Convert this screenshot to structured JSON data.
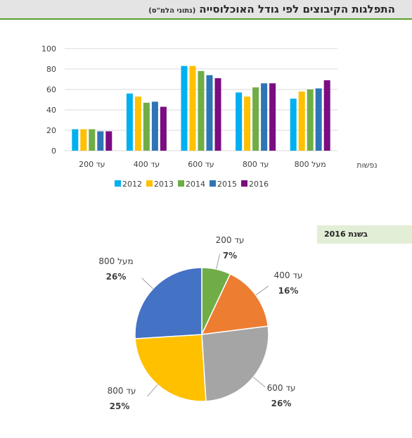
{
  "header": {
    "title": "התפלגות הקיבוצים לפי גודל האוכלוסייה",
    "subtitle": "(נתוני הלמ\"ס)"
  },
  "pie_caption": "בשנת 2016",
  "chart_data": [
    {
      "type": "bar",
      "categories": [
        "עד 200",
        "עד 400",
        "עד 600",
        "עד 800",
        "מעל 800"
      ],
      "xlabel": "נפשות",
      "ylabel": "",
      "ylim": [
        0,
        100
      ],
      "yticks": [
        0,
        20,
        40,
        60,
        80,
        100
      ],
      "grid": true,
      "legend": "bottom",
      "series": [
        {
          "name": "2012",
          "color": "#00b0f0",
          "values": [
            21,
            56,
            83,
            57,
            51
          ]
        },
        {
          "name": "2013",
          "color": "#ffc000",
          "values": [
            21,
            53,
            83,
            53,
            58
          ]
        },
        {
          "name": "2014",
          "color": "#70ad47",
          "values": [
            21,
            47,
            78,
            62,
            60
          ]
        },
        {
          "name": "2015",
          "color": "#2e75b6",
          "values": [
            19,
            48,
            74,
            66,
            61
          ]
        },
        {
          "name": "2016",
          "color": "#7b0c82",
          "values": [
            19,
            43,
            71,
            66,
            69
          ]
        }
      ]
    },
    {
      "type": "pie",
      "slices": [
        {
          "label": "עד 200",
          "value": 7,
          "display": "7%",
          "color": "#70ad47"
        },
        {
          "label": "עד 400",
          "value": 16,
          "display": "16%",
          "color": "#ed7d31"
        },
        {
          "label": "עד 600",
          "value": 26,
          "display": "26%",
          "color": "#a5a5a5"
        },
        {
          "label": "עד 800",
          "value": 25,
          "display": "25%",
          "color": "#ffc000"
        },
        {
          "label": "מעל 800",
          "value": 26,
          "display": "26%",
          "color": "#4472c4"
        }
      ]
    }
  ]
}
